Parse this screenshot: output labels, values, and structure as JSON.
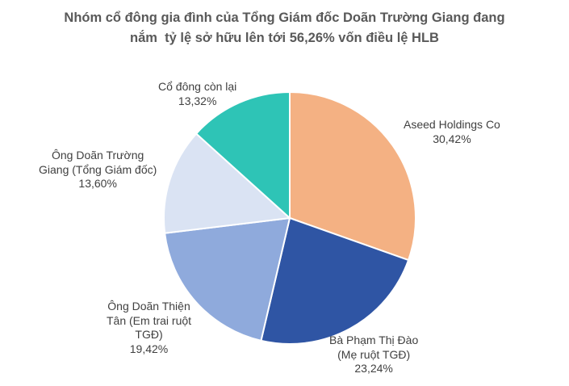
{
  "chart_data": {
    "type": "pie",
    "title": [
      "Nhóm cổ đông gia đình của Tổng Giám đốc Doãn Trường Giang đang",
      "nắm  tỷ lệ sở hữu lên tới 56,26% vốn điều lệ HLB"
    ],
    "start_angle_deg": 0,
    "direction": "clockwise",
    "slices": [
      {
        "label_lines": [
          "Aseed Holdings Co"
        ],
        "value": 30.42,
        "value_text": "30,42%",
        "color": "#F4B183"
      },
      {
        "label_lines": [
          "Bà Phạm Thị Đào",
          "(Mẹ ruột TGĐ)"
        ],
        "value": 23.24,
        "value_text": "23,24%",
        "color": "#2F55A4"
      },
      {
        "label_lines": [
          "Ông Doãn Thiện",
          "Tân (Em trai ruột",
          "TGĐ)"
        ],
        "value": 19.42,
        "value_text": "19,42%",
        "color": "#8FAADC"
      },
      {
        "label_lines": [
          "Ông Doãn Trường",
          "Giang (Tổng Giám đốc)"
        ],
        "value": 13.6,
        "value_text": "13,60%",
        "color": "#DAE3F3"
      },
      {
        "label_lines": [
          "Cổ đông còn lại"
        ],
        "value": 13.32,
        "value_text": "13,32%",
        "color": "#2EC4B6"
      }
    ]
  }
}
